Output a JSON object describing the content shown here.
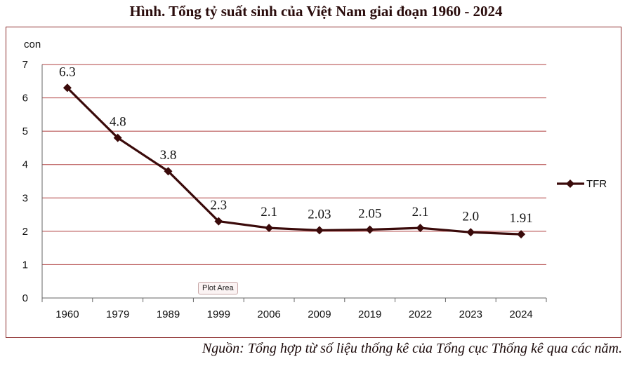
{
  "title": "Hình. Tổng tỷ suất sinh của Việt Nam giai đoạn 1960 - 2024",
  "source_note": "Nguồn: Tổng hợp từ số liệu thống kê của Tổng cục Thống kê qua các năm.",
  "tooltip": "Plot Area",
  "colors": {
    "line": "#3a0a0a",
    "grid": "#b04040",
    "frame": "#8b2b2b"
  },
  "chart_data": {
    "type": "line",
    "title": "Hình. Tổng tỷ suất sinh của Việt Nam giai đoạn 1960 - 2024",
    "ylabel": "con",
    "xlabel": "",
    "categories": [
      "1960",
      "1979",
      "1989",
      "1999",
      "2006",
      "2009",
      "2019",
      "2022",
      "2023",
      "2024"
    ],
    "series": [
      {
        "name": "TFR",
        "values": [
          6.3,
          4.8,
          3.8,
          2.3,
          2.1,
          2.03,
          2.05,
          2.1,
          1.97,
          1.91
        ],
        "labels": [
          "6.3",
          "4.8",
          "3.8",
          "2.3",
          "2.1",
          "2.03",
          "2.05",
          "2.1",
          "2.0",
          "1.91"
        ],
        "marker": "diamond"
      }
    ],
    "ylim": [
      0,
      7
    ],
    "yticks": [
      "0",
      "1",
      "2",
      "3",
      "4",
      "5",
      "6",
      "7"
    ],
    "grid": true,
    "legend_position": "right"
  }
}
